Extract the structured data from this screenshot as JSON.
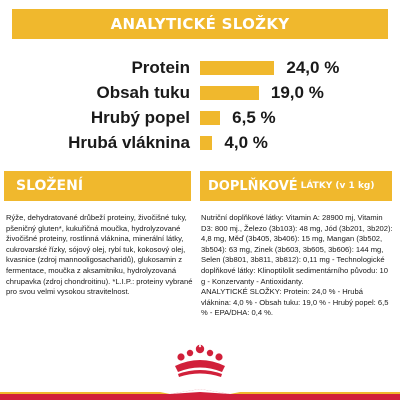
{
  "analytic": {
    "title": "ANALYTICKÉ SLOŽKY",
    "rows": [
      {
        "label": "Protein",
        "value": "24,0 %",
        "percent": 24.0
      },
      {
        "label": "Obsah tuku",
        "value": "19,0 %",
        "percent": 19.0
      },
      {
        "label": "Hrubý popel",
        "value": "6,5 %",
        "percent": 6.5
      },
      {
        "label": "Hrubá vláknina",
        "value": "4,0 %",
        "percent": 4.0
      }
    ]
  },
  "composition": {
    "title": "SLOŽENÍ",
    "text": "Rýže, dehydratované drůbeží proteiny, živočišné tuky, pšeničný gluten*, kukuřičná moučka, hydrolyzované živočišné proteiny, rostlinná vláknina, minerální látky, cukrovarské řízky, sójový olej, rybí tuk, kokosový olej, kvasnice (zdroj mannooligosacharidů), glukosamin z fermentace, moučka z aksamitniku, hydrolyzovaná chrupavka (zdroj chondroitinu). *L.I.P.: proteiny vybrané pro svou velmi vysokou stravitelnost."
  },
  "additives": {
    "title": "DOPLŇKOVÉ",
    "title_small": "LÁTKY (v 1 kg)",
    "text": "Nutriční doplňkové látky: Vitamin A: 28900 mj, Vitamin D3: 800 mj., Železo (3b103): 48 mg, Jód (3b201, 3b202): 4,8 mg, Měď (3b405, 3b406): 15 mg, Mangan (3b502, 3b504): 63 mg, Zinek (3b603, 3b605, 3b606): 144 mg, Selen (3b801, 3b811, 3b812): 0,11 mg - Technologické doplňkové látky: Klinoptilolit sedimentárního původu: 10 g - Konzervanty - Antioxidanty.\nANALYTICKÉ SLOŽKY: Protein: 24,0 % - Hrubá vláknina: 4,0 % - Obsah tuku: 19,0 % - Hrubý popel: 6,5 % - EPA/DHA: 0,4 %."
  },
  "colors": {
    "accent": "#f0b82d",
    "brand_red": "#d1203a"
  },
  "icons": {
    "logo": "royal-canin-crown-icon",
    "footer": "stripe-decoration"
  }
}
